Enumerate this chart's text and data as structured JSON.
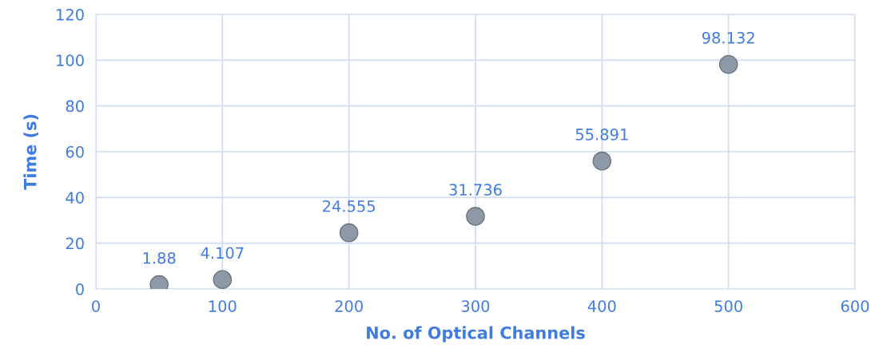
{
  "chart_data": {
    "type": "scatter",
    "xlabel": "No. of Optical Channels",
    "ylabel": "Time (s)",
    "x": [
      50,
      100,
      200,
      300,
      400,
      500
    ],
    "values": [
      1.88,
      4.107,
      24.555,
      31.736,
      55.891,
      98.132
    ],
    "color": "#8d99a6",
    "data_labels": true,
    "xlim": [
      0,
      600
    ],
    "xticks": [
      0,
      100,
      200,
      300,
      400,
      500,
      600
    ],
    "ylim": [
      0,
      120
    ],
    "yticks": [
      0,
      20,
      40,
      60,
      80,
      100,
      120
    ],
    "grid": true,
    "marker": "circle"
  }
}
